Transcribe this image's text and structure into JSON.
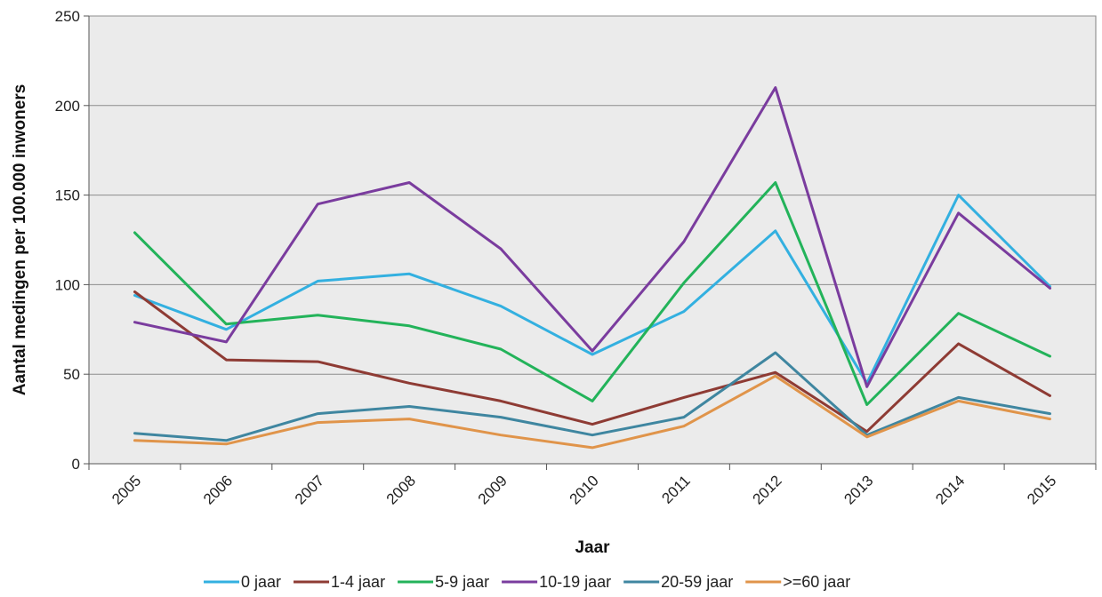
{
  "chart_data": {
    "type": "line",
    "title": "",
    "xlabel": "Jaar",
    "ylabel": "Aantal medingen per 100.000 inwoners",
    "categories": [
      "2005",
      "2006",
      "2007",
      "2008",
      "2009",
      "2010",
      "2011",
      "2012",
      "2013",
      "2014",
      "2015"
    ],
    "ylim": [
      0,
      250
    ],
    "yticks": [
      0,
      50,
      100,
      150,
      200,
      250
    ],
    "grid": true,
    "legend_position": "bottom",
    "series": [
      {
        "name": "0 jaar",
        "color": "#33b0e0",
        "values": [
          94,
          75,
          102,
          106,
          88,
          61,
          85,
          130,
          45,
          150,
          99
        ]
      },
      {
        "name": "1-4 jaar",
        "color": "#8e3b34",
        "values": [
          96,
          58,
          57,
          45,
          35,
          22,
          37,
          51,
          18,
          67,
          38
        ]
      },
      {
        "name": "5-9 jaar",
        "color": "#23b35a",
        "values": [
          129,
          78,
          83,
          77,
          64,
          35,
          101,
          157,
          33,
          84,
          60
        ]
      },
      {
        "name": "10-19 jaar",
        "color": "#7a3c9e",
        "values": [
          79,
          68,
          145,
          157,
          120,
          63,
          124,
          210,
          43,
          140,
          98
        ]
      },
      {
        "name": "20-59 jaar",
        "color": "#3f86a0",
        "values": [
          17,
          13,
          28,
          32,
          26,
          16,
          26,
          62,
          16,
          37,
          28
        ]
      },
      {
        "name": ">=60 jaar",
        "color": "#e0944a",
        "values": [
          13,
          11,
          23,
          25,
          16,
          9,
          21,
          49,
          15,
          35,
          25
        ]
      }
    ]
  }
}
